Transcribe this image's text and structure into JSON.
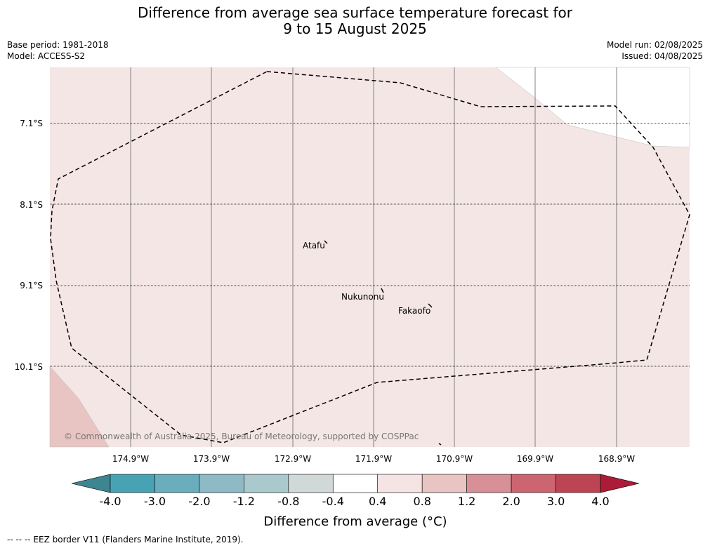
{
  "title": {
    "line1": "Difference from average sea surface temperature forecast for",
    "line2": "9 to 15 August 2025"
  },
  "meta_left": {
    "base_period": "Base period: 1981-2018",
    "model": "Model: ACCESS-S2"
  },
  "meta_right": {
    "model_run": "Model run: 02/08/2025",
    "issued": "Issued: 04/08/2025"
  },
  "map": {
    "lat_labels": [
      "7.1°S",
      "8.1°S",
      "9.1°S",
      "10.1°S"
    ],
    "lon_labels": [
      "174.9°W",
      "173.9°W",
      "172.9°W",
      "171.9°W",
      "170.9°W",
      "169.9°W",
      "168.9°W"
    ],
    "places": [
      "Atafu",
      "Nukunonu",
      "Fakaofo"
    ],
    "copyright": "© Commonwealth of Australia 2025, Bureau of Meteorology, supported by COSPPac",
    "colors": {
      "main_fill": "#f4e6e5",
      "warm_fill": "#e8c5c2",
      "eez_line": "#000000"
    }
  },
  "colorbar": {
    "ticks": [
      "-4.0",
      "-3.0",
      "-2.0",
      "-1.2",
      "-0.8",
      "-0.4",
      "0.4",
      "0.8",
      "1.2",
      "2.0",
      "3.0",
      "4.0"
    ],
    "colors": [
      "#3d8590",
      "#47a3b3",
      "#6aaebd",
      "#8dbac4",
      "#a9c9cc",
      "#d1d8d8",
      "#ffffff",
      "#f5e4e3",
      "#e8c5c2",
      "#d88f96",
      "#cc6570",
      "#bd4452",
      "#ac1c38"
    ],
    "label": "Difference from average (°C)"
  },
  "footer": "--  --  -- EEZ border V11 (Flanders Marine Institute, 2019)."
}
